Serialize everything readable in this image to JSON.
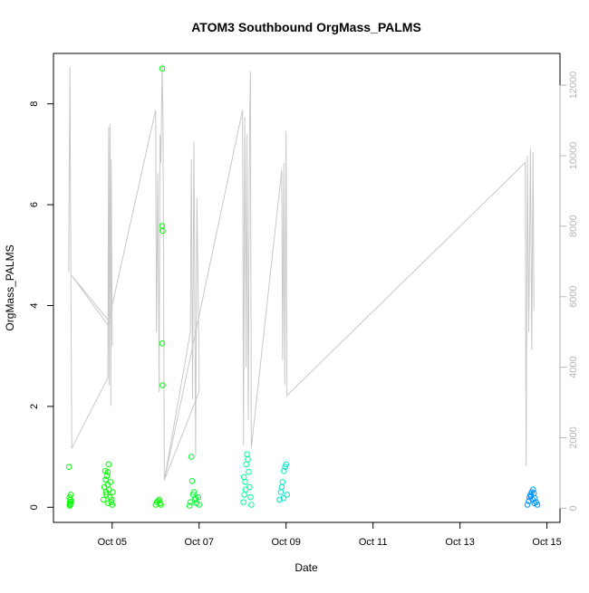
{
  "chart_data": {
    "type": "scatter",
    "title": "ATOM3 Southbound OrgMass_PALMS",
    "xlabel": "Date",
    "ylabel": "OrgMass_PALMS",
    "x_ticks": [
      "Oct 05",
      "Oct 07",
      "Oct 09",
      "Oct 11",
      "Oct 13",
      "Oct 15"
    ],
    "x_tick_days": [
      5,
      7,
      9,
      11,
      13,
      15
    ],
    "xlim": [
      3.65,
      15.3
    ],
    "y_ticks": [
      0,
      2,
      4,
      6,
      8
    ],
    "ylim": [
      -0.3,
      9.0
    ],
    "y2_ticks": [
      0,
      2000,
      4000,
      6000,
      8000,
      10000,
      12000
    ],
    "y2lim": [
      -400,
      12900
    ],
    "grid": false,
    "colors": {
      "secondary_line": "#c8c8c8",
      "right_axis": "#b5b5b5",
      "point_palette": [
        "#00ff00",
        "#00ff80",
        "#00e6c8",
        "#0096ff"
      ]
    },
    "series": [
      {
        "kind": "points",
        "values": [
          [
            4.02,
            0.05
          ],
          [
            4.03,
            0.1
          ],
          [
            4.04,
            0.15
          ],
          [
            4.02,
            0.2
          ],
          [
            4.05,
            0.25
          ],
          [
            4.03,
            0.03
          ],
          [
            4.01,
            0.8
          ],
          [
            4.06,
            0.12
          ],
          [
            4.04,
            0.07
          ],
          [
            4.8,
            0.15
          ],
          [
            4.82,
            0.4
          ],
          [
            4.85,
            0.55
          ],
          [
            4.88,
            0.62
          ],
          [
            4.9,
            0.7
          ],
          [
            4.92,
            0.85
          ],
          [
            4.86,
            0.3
          ],
          [
            4.95,
            0.2
          ],
          [
            4.98,
            0.1
          ],
          [
            5.0,
            0.05
          ],
          [
            4.9,
            0.45
          ],
          [
            4.93,
            0.35
          ],
          [
            4.96,
            0.5
          ],
          [
            4.84,
            0.72
          ],
          [
            4.87,
            0.25
          ],
          [
            4.99,
            0.15
          ],
          [
            4.91,
            0.08
          ],
          [
            5.01,
            0.3
          ],
          [
            6.0,
            0.05
          ],
          [
            6.03,
            0.1
          ],
          [
            6.06,
            0.12
          ],
          [
            6.1,
            0.08
          ],
          [
            6.15,
            8.7
          ],
          [
            6.15,
            5.58
          ],
          [
            6.16,
            5.48
          ],
          [
            6.15,
            3.25
          ],
          [
            6.16,
            2.42
          ],
          [
            6.08,
            0.15
          ],
          [
            6.12,
            0.05
          ],
          [
            6.78,
            0.03
          ],
          [
            6.8,
            0.1
          ],
          [
            6.82,
            1.0
          ],
          [
            6.84,
            0.52
          ],
          [
            6.86,
            0.25
          ],
          [
            6.9,
            0.15
          ],
          [
            6.94,
            0.08
          ],
          [
            6.98,
            0.2
          ],
          [
            7.0,
            0.05
          ],
          [
            6.88,
            0.3
          ],
          [
            6.92,
            0.18
          ],
          [
            8.02,
            0.1
          ],
          [
            8.04,
            0.25
          ],
          [
            8.06,
            0.5
          ],
          [
            8.08,
            0.85
          ],
          [
            8.1,
            1.05
          ],
          [
            8.12,
            0.95
          ],
          [
            8.14,
            0.7
          ],
          [
            8.16,
            0.4
          ],
          [
            8.18,
            0.2
          ],
          [
            8.2,
            0.05
          ],
          [
            8.03,
            0.6
          ],
          [
            8.07,
            0.35
          ],
          [
            8.85,
            0.15
          ],
          [
            8.88,
            0.3
          ],
          [
            8.92,
            0.5
          ],
          [
            8.95,
            0.72
          ],
          [
            8.98,
            0.8
          ],
          [
            9.0,
            0.85
          ],
          [
            9.02,
            0.25
          ],
          [
            8.9,
            0.4
          ],
          [
            8.94,
            0.18
          ],
          [
            14.55,
            0.05
          ],
          [
            14.58,
            0.12
          ],
          [
            14.6,
            0.2
          ],
          [
            14.62,
            0.25
          ],
          [
            14.65,
            0.3
          ],
          [
            14.68,
            0.35
          ],
          [
            14.7,
            0.28
          ],
          [
            14.72,
            0.18
          ],
          [
            14.75,
            0.1
          ],
          [
            14.78,
            0.05
          ],
          [
            14.63,
            0.22
          ],
          [
            14.67,
            0.15
          ],
          [
            14.71,
            0.08
          ]
        ]
      },
      {
        "kind": "line",
        "axis": "right",
        "values": [
          [
            4.0,
            6700
          ],
          [
            4.03,
            12500
          ],
          [
            4.05,
            6600
          ],
          [
            4.07,
            1700
          ],
          [
            4.9,
            3700
          ],
          [
            4.9,
            4000
          ],
          [
            4.92,
            10800
          ],
          [
            4.93,
            3500
          ],
          [
            4.95,
            10900
          ],
          [
            4.97,
            2900
          ],
          [
            4.98,
            9900
          ],
          [
            5.0,
            4600
          ],
          [
            5.0,
            5200
          ],
          [
            4.07,
            6600
          ],
          [
            4.9,
            5200
          ],
          [
            6.0,
            11300
          ],
          [
            6.02,
            5000
          ],
          [
            6.05,
            9500
          ],
          [
            6.08,
            3300
          ],
          [
            6.1,
            10600
          ],
          [
            6.12,
            9800
          ],
          [
            6.15,
            12600
          ],
          [
            6.17,
            10900
          ],
          [
            6.2,
            800
          ],
          [
            6.8,
            5000
          ],
          [
            6.82,
            9900
          ],
          [
            6.85,
            3100
          ],
          [
            6.88,
            10400
          ],
          [
            6.92,
            1500
          ],
          [
            6.95,
            8800
          ],
          [
            7.0,
            4100
          ],
          [
            7.0,
            3300
          ],
          [
            6.2,
            800
          ],
          [
            8.0,
            11300
          ],
          [
            8.02,
            1800
          ],
          [
            8.05,
            11100
          ],
          [
            8.08,
            4000
          ],
          [
            8.1,
            10600
          ],
          [
            8.13,
            2500
          ],
          [
            8.16,
            10800
          ],
          [
            8.18,
            12400
          ],
          [
            8.2,
            1700
          ],
          [
            8.9,
            9600
          ],
          [
            8.92,
            4200
          ],
          [
            8.95,
            9800
          ],
          [
            8.97,
            3500
          ],
          [
            9.0,
            10700
          ],
          [
            9.02,
            3200
          ],
          [
            14.5,
            9800
          ],
          [
            14.52,
            1200
          ],
          [
            14.55,
            10000
          ],
          [
            14.58,
            5000
          ],
          [
            14.62,
            10200
          ],
          [
            14.65,
            4500
          ],
          [
            14.68,
            10100
          ],
          [
            14.7,
            5600
          ]
        ]
      }
    ]
  }
}
